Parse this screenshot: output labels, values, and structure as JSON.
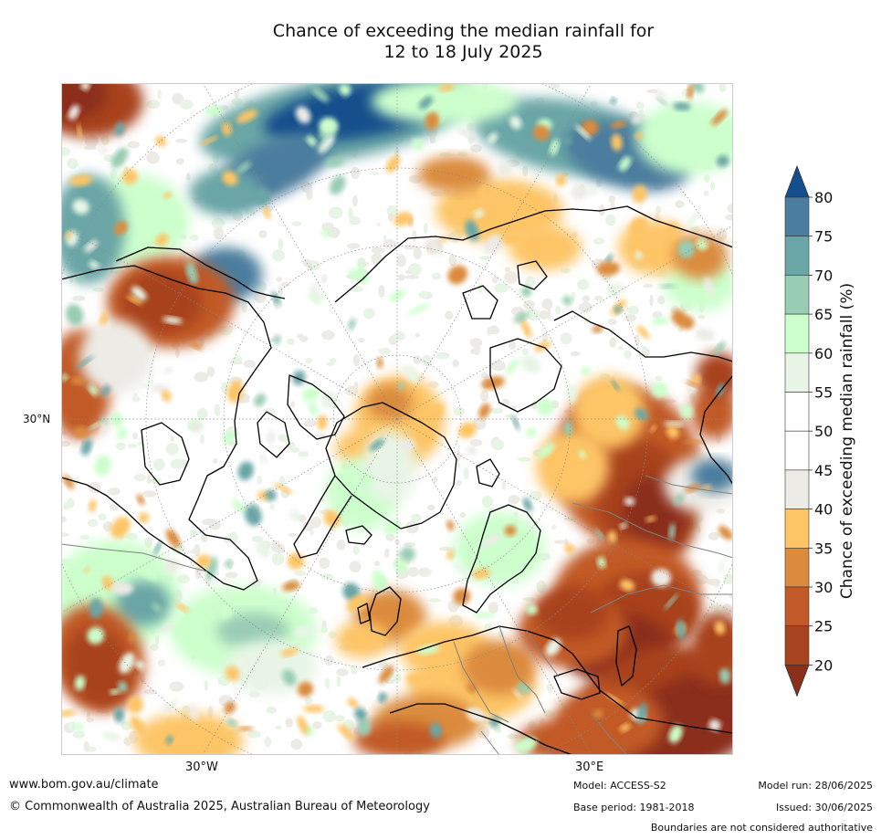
{
  "title_line1": "Chance of exceeding the median rainfall for",
  "title_line2": "12 to 18 July 2025",
  "map": {
    "projection": "north-polar stereographic",
    "latitude_label": "30°N",
    "longitude_labels": [
      "30°W",
      "30°E"
    ],
    "colors": {
      "ocean_land_base": "#ffffff",
      "coastline": "#000000",
      "borders": "#808080",
      "graticule": "#888888"
    }
  },
  "colorbar": {
    "title": "Chance of exceeding median rainfall (%)",
    "ticks": [
      "20",
      "25",
      "30",
      "35",
      "40",
      "45",
      "50",
      "55",
      "60",
      "65",
      "70",
      "75",
      "80"
    ],
    "bins": [
      {
        "range": "<20",
        "color": "#8b2e1a"
      },
      {
        "range": "20-25",
        "color": "#a8431f"
      },
      {
        "range": "25-30",
        "color": "#c15a28"
      },
      {
        "range": "30-35",
        "color": "#db8b3c"
      },
      {
        "range": "35-40",
        "color": "#fdc566"
      },
      {
        "range": "40-45",
        "color": "#edebe6"
      },
      {
        "range": "45-50",
        "color": "#ffffff"
      },
      {
        "range": "50-55",
        "color": "#ffffff"
      },
      {
        "range": "55-60",
        "color": "#e8f5e6"
      },
      {
        "range": "60-65",
        "color": "#ccffcc"
      },
      {
        "range": "65-70",
        "color": "#99ccb4"
      },
      {
        "range": "70-75",
        "color": "#6aa6a6"
      },
      {
        "range": "75-80",
        "color": "#4b7d9e"
      },
      {
        "range": ">80",
        "color": "#124f8c"
      }
    ]
  },
  "footer": {
    "url": "www.bom.gov.au/climate",
    "copyright": "© Commonwealth of Australia 2025, Australian Bureau of Meteorology",
    "model": "Model: ACCESS-S2",
    "base_period": "Base period: 1981-2018",
    "model_run": "Model run: 28/06/2025",
    "issued": "Issued: 30/06/2025",
    "disclaimer": "Boundaries are not considered authoritative"
  }
}
